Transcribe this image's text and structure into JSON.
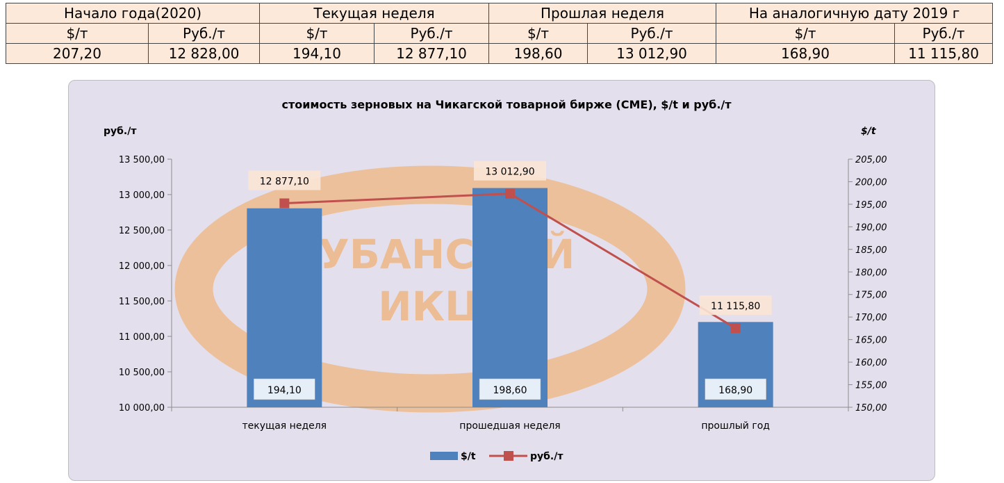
{
  "table": {
    "groups": [
      "Начало года(2020)",
      "Текущая неделя",
      "Прошлая неделя",
      "На аналогичную дату 2019 г"
    ],
    "units": [
      "$/т",
      "Руб./т",
      "$/т",
      "Руб./т",
      "$/т",
      "Руб./т",
      "$/т",
      "Руб./т"
    ],
    "values": [
      "207,20",
      "12 828,00",
      "194,10",
      "12 877,10",
      "198,60",
      "13 012,90",
      "168,90",
      "11 115,80"
    ]
  },
  "colors": {
    "bar": "#4f81bd",
    "line": "#c0504d",
    "plot_bg": "#e4dfec",
    "watermark": "#f2a65a"
  },
  "watermark_text": [
    "КУБАНСКИЙ",
    "ИКЦ"
  ],
  "chart_data": {
    "type": "bar",
    "title": "стоимость зерновых на Чикагской товарной бирже (CME), $/t и руб./т",
    "ylabel_left": "руб./т",
    "ylabel_right": "$/t",
    "categories": [
      "текущая неделя",
      "прошедшая неделя",
      "прошлый год"
    ],
    "left_ticks": [
      "13 500,00",
      "13 000,00",
      "12 500,00",
      "12 000,00",
      "11 500,00",
      "11 000,00",
      "10 500,00",
      "10 000,00"
    ],
    "right_ticks": [
      "205,00",
      "200,00",
      "195,00",
      "190,00",
      "185,00",
      "180,00",
      "175,00",
      "170,00",
      "165,00",
      "160,00",
      "155,00",
      "150,00"
    ],
    "ylim_left": [
      10000,
      13500
    ],
    "ylim_right": [
      150,
      205
    ],
    "series": [
      {
        "name": "$/t",
        "type": "bar",
        "axis": "right",
        "values": [
          194.1,
          198.6,
          168.9
        ],
        "labels": [
          "194,10",
          "198,60",
          "168,90"
        ]
      },
      {
        "name": "руб./т",
        "type": "line",
        "axis": "left",
        "values": [
          12877.1,
          13012.9,
          11115.8
        ],
        "labels": [
          "12 877,10",
          "13 012,90",
          "11 115,80"
        ]
      }
    ],
    "legend_position": "bottom"
  }
}
